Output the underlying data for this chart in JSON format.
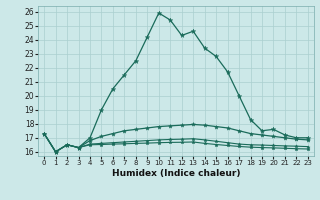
{
  "xlabel": "Humidex (Indice chaleur)",
  "xlim": [
    -0.5,
    23.5
  ],
  "ylim": [
    15.7,
    26.4
  ],
  "xticks": [
    0,
    1,
    2,
    3,
    4,
    5,
    6,
    7,
    8,
    9,
    10,
    11,
    12,
    13,
    14,
    15,
    16,
    17,
    18,
    19,
    20,
    21,
    22,
    23
  ],
  "yticks": [
    16,
    17,
    18,
    19,
    20,
    21,
    22,
    23,
    24,
    25,
    26
  ],
  "bg_color": "#cce8e8",
  "line_color": "#1a6b5a",
  "grid_color": "#aacfcf",
  "line1_y": [
    17.3,
    16.0,
    16.5,
    16.3,
    17.0,
    19.0,
    20.5,
    21.5,
    22.5,
    24.2,
    25.9,
    25.4,
    24.3,
    24.6,
    23.4,
    22.8,
    21.7,
    20.0,
    18.3,
    17.5,
    17.6,
    17.2,
    17.0,
    17.0
  ],
  "line2_y": [
    17.3,
    16.0,
    16.5,
    16.3,
    16.8,
    17.1,
    17.3,
    17.5,
    17.6,
    17.7,
    17.8,
    17.85,
    17.9,
    17.95,
    17.9,
    17.8,
    17.7,
    17.5,
    17.3,
    17.2,
    17.1,
    17.0,
    16.9,
    16.85
  ],
  "line3_y": [
    17.3,
    16.0,
    16.5,
    16.3,
    16.55,
    16.6,
    16.65,
    16.7,
    16.75,
    16.8,
    16.85,
    16.88,
    16.9,
    16.93,
    16.85,
    16.75,
    16.65,
    16.55,
    16.5,
    16.48,
    16.45,
    16.42,
    16.4,
    16.37
  ],
  "line4_y": [
    17.3,
    16.0,
    16.5,
    16.3,
    16.5,
    16.52,
    16.55,
    16.57,
    16.6,
    16.62,
    16.65,
    16.67,
    16.68,
    16.7,
    16.6,
    16.52,
    16.45,
    16.38,
    16.33,
    16.3,
    16.28,
    16.25,
    16.22,
    16.2
  ]
}
